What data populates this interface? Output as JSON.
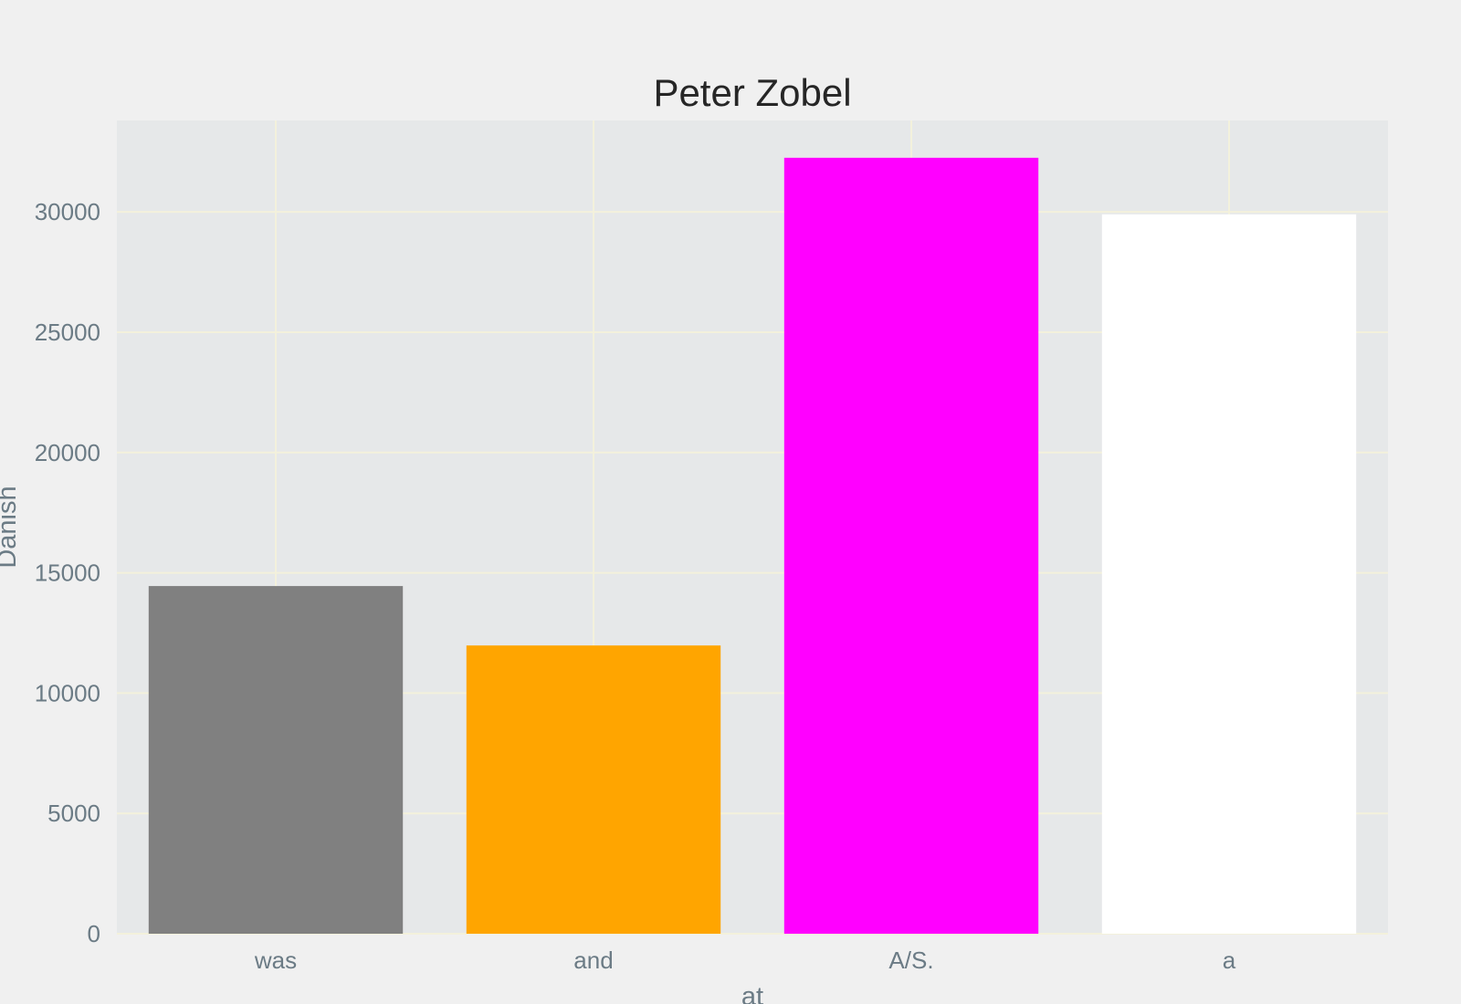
{
  "chart_data": {
    "type": "bar",
    "title": "Peter Zobel",
    "xlabel": "at",
    "ylabel": "Danish",
    "categories": [
      "was",
      "and",
      "A/S.",
      "a"
    ],
    "values": [
      14450,
      11980,
      32250,
      29900
    ],
    "bar_colors": [
      "#808080",
      "#ffa500",
      "#ff00ff",
      "#ffffff"
    ],
    "ylim": [
      0,
      33800
    ],
    "yticks": [
      0,
      5000,
      10000,
      15000,
      20000,
      25000,
      30000
    ],
    "ytick_labels": [
      "0",
      "5000",
      "10000",
      "15000",
      "20000",
      "25000",
      "30000"
    ],
    "grid": true,
    "grid_color": "#f3f1dc",
    "plot_background": "#e6e8e9",
    "figure_background": "#f0f0f0"
  }
}
